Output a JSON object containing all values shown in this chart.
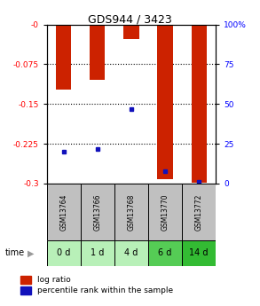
{
  "title": "GDS944 / 3423",
  "samples": [
    "GSM13764",
    "GSM13766",
    "GSM13768",
    "GSM13770",
    "GSM13772"
  ],
  "time_labels": [
    "0 d",
    "1 d",
    "4 d",
    "6 d",
    "14 d"
  ],
  "log_ratios": [
    -0.123,
    -0.105,
    -0.028,
    -0.291,
    -0.298
  ],
  "percentile_ranks": [
    20,
    22,
    47,
    8,
    1
  ],
  "ylim": [
    -0.3,
    0.0
  ],
  "yticks": [
    0.0,
    -0.075,
    -0.15,
    -0.225,
    -0.3
  ],
  "ytick_labels": [
    "-0",
    "-0.075",
    "-0.15",
    "-0.225",
    "-0.3"
  ],
  "right_ytick_labels": [
    "100%",
    "75",
    "50",
    "25",
    "0"
  ],
  "bar_color": "#cc2200",
  "dot_color": "#1111bb",
  "bar_width": 0.45,
  "gsm_bg": "#c0c0c0",
  "time_bg_colors": [
    "#b8f0b8",
    "#b8f0b8",
    "#b8f0b8",
    "#55cc55",
    "#33bb33"
  ],
  "fig_width": 2.93,
  "fig_height": 3.45
}
